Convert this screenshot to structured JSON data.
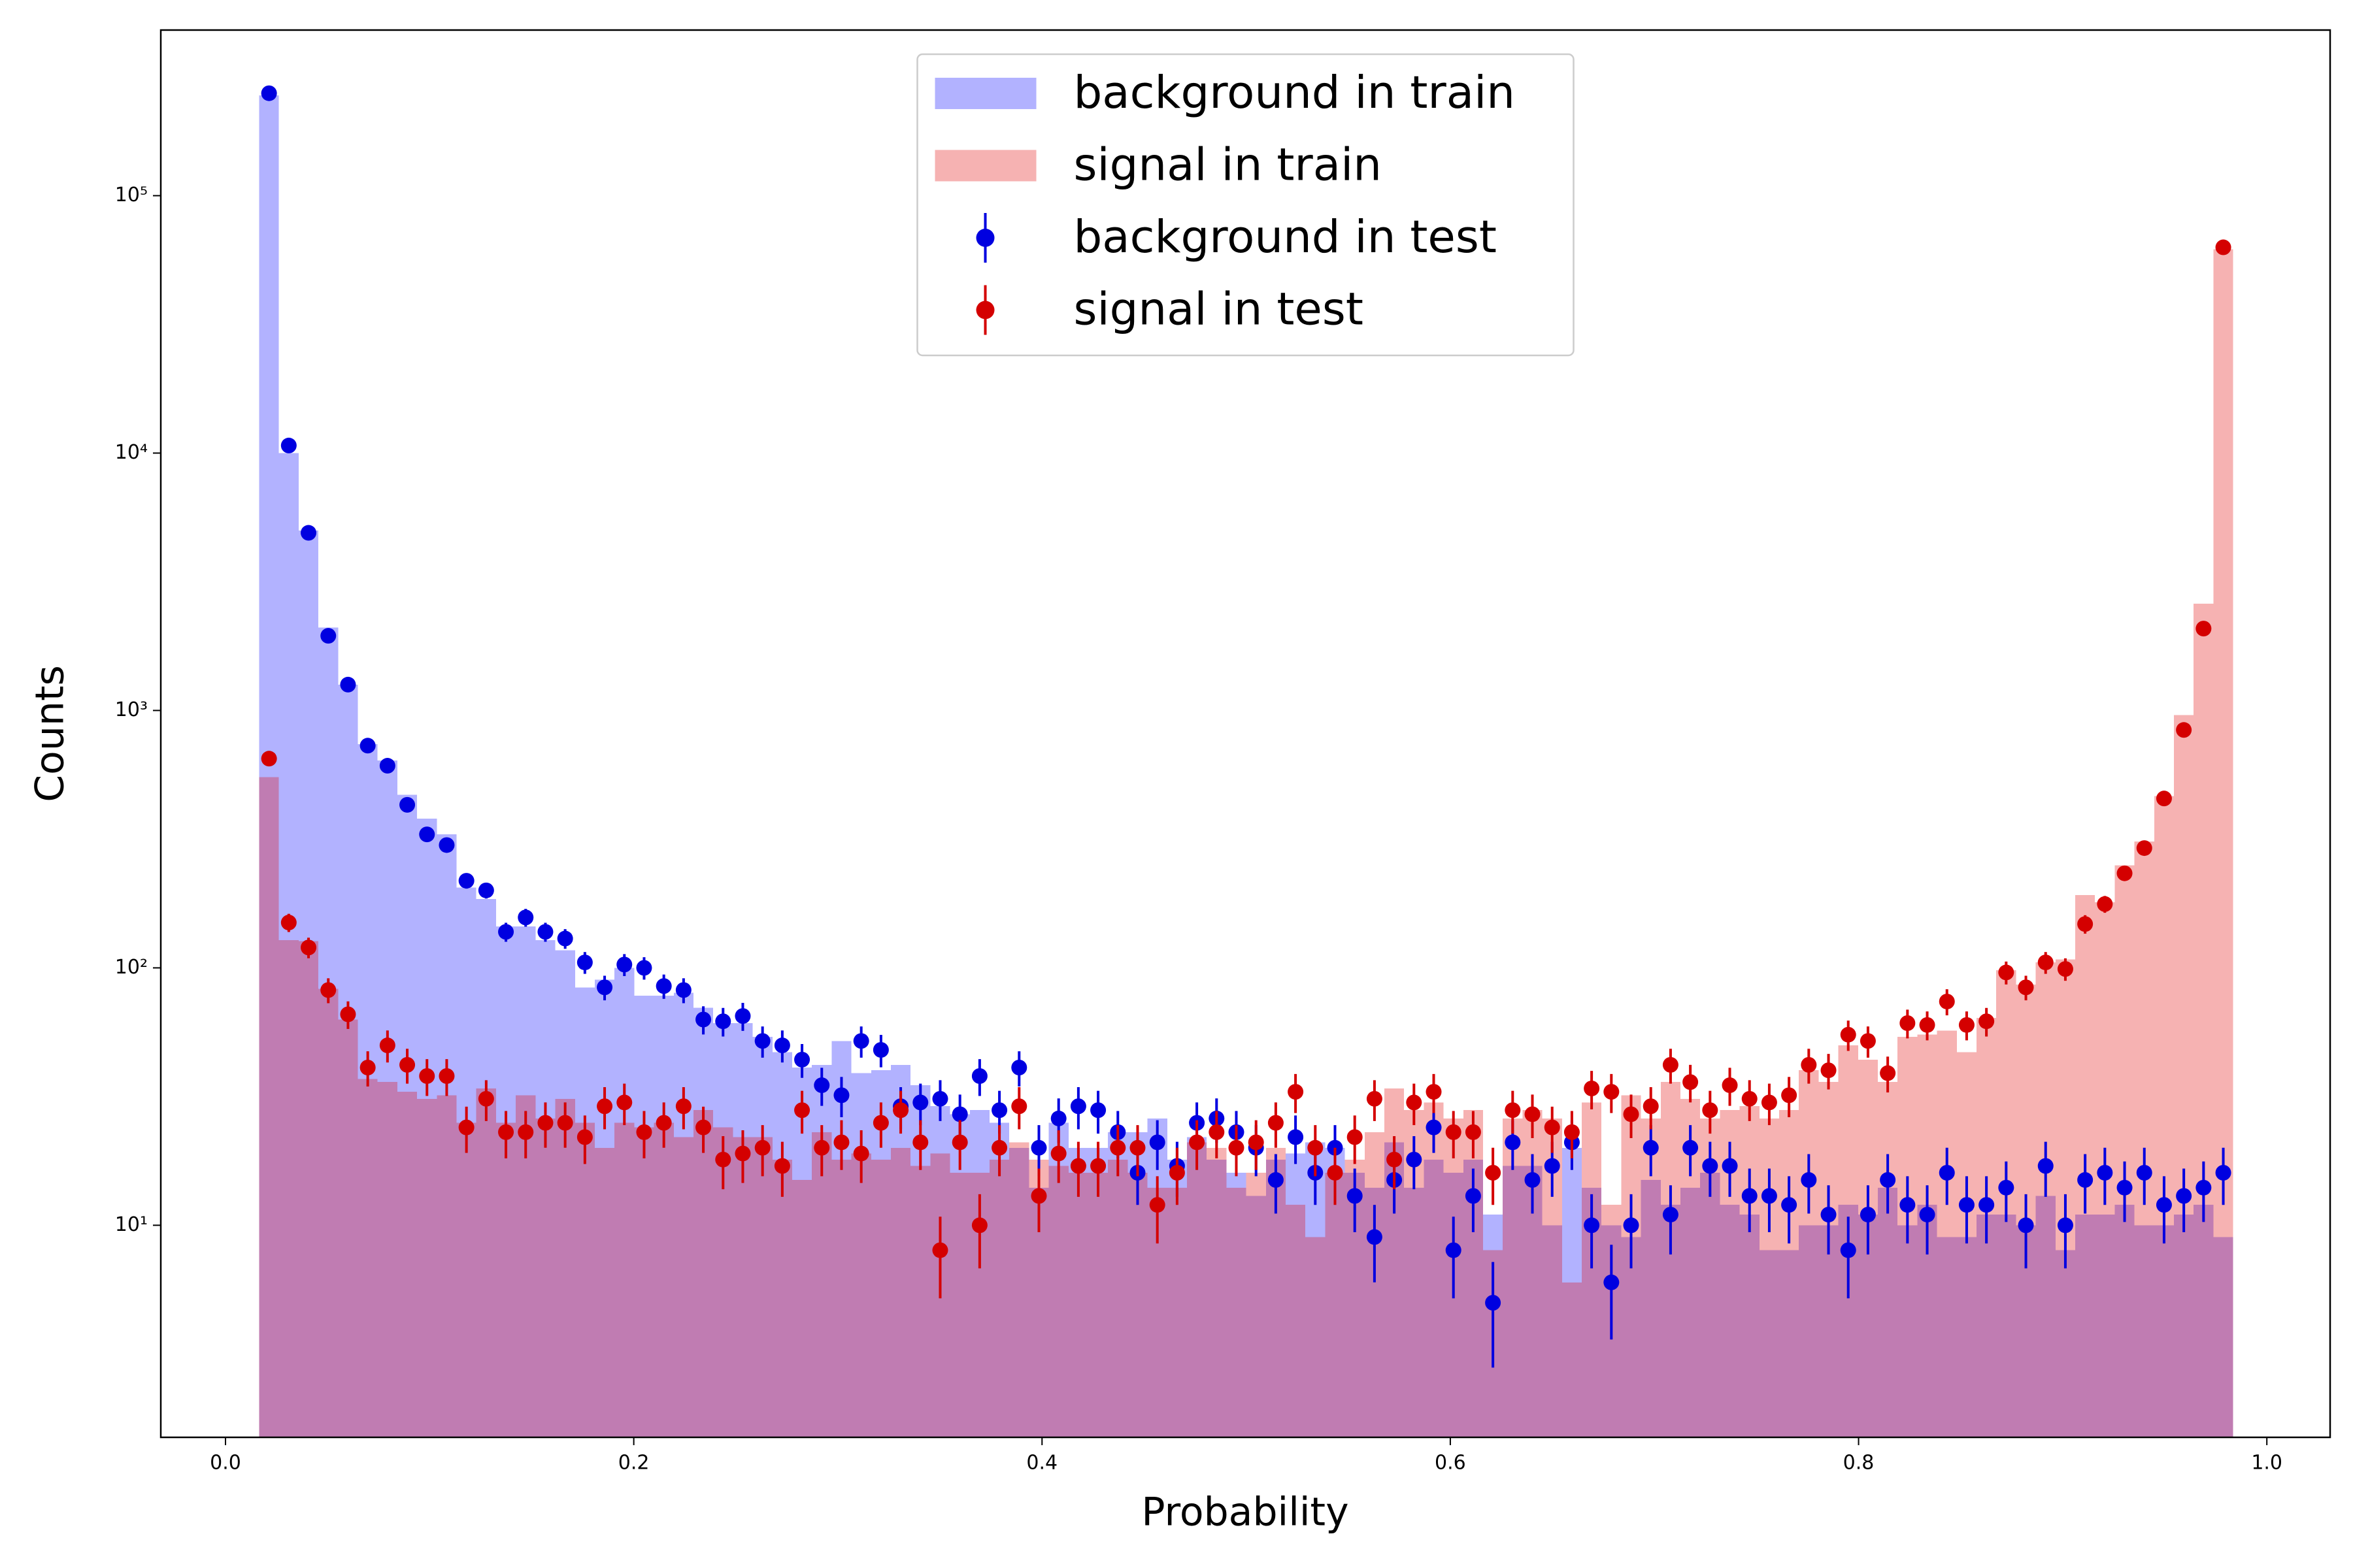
{
  "chart_data": {
    "type": "histogram",
    "x_label": "Probability",
    "y_label": "Counts",
    "xlim": [
      -0.0317,
      1.031
    ],
    "ylim": [
      1.5,
      440000
    ],
    "y_scale": "log",
    "grid": false,
    "legend": "upper center",
    "xticks": [
      {
        "value": 0,
        "label": "0.0"
      },
      0.2,
      0.4,
      0.6,
      0.8,
      {
        "value": 1,
        "label": "1.0"
      }
    ],
    "yticks": [
      {
        "value": 10,
        "label": "10¹"
      },
      {
        "value": 100,
        "label": "10²"
      },
      {
        "value": 1000,
        "label": "10³"
      },
      {
        "value": 10000,
        "label": "10⁴"
      },
      {
        "value": 100000,
        "label": "10⁵"
      }
    ],
    "bins": [
      0.0165,
      0.02617,
      0.03584,
      0.04551,
      0.05518,
      0.06485,
      0.07452,
      0.08419,
      0.09386,
      0.10353,
      0.1132,
      0.12287,
      0.13254,
      0.14221,
      0.15188,
      0.16155,
      0.17122,
      0.18089,
      0.19056,
      0.20023,
      0.2099,
      0.21957,
      0.22924,
      0.23891,
      0.24858,
      0.25825,
      0.26792,
      0.27759,
      0.28726,
      0.29693,
      0.3066,
      0.31627,
      0.32594,
      0.33561,
      0.34528,
      0.35495,
      0.36462,
      0.37429,
      0.38396,
      0.39363,
      0.4033,
      0.41297,
      0.42264,
      0.43231,
      0.44198,
      0.45165,
      0.46132,
      0.47099,
      0.48066,
      0.49033,
      0.5,
      0.50967,
      0.51934,
      0.52901,
      0.53868,
      0.54835,
      0.55802,
      0.56769,
      0.57736,
      0.58703,
      0.5967,
      0.60637,
      0.61604,
      0.62571,
      0.63538,
      0.64505,
      0.65472,
      0.66439,
      0.67406,
      0.68373,
      0.6934,
      0.70307,
      0.71274,
      0.72241,
      0.73208,
      0.74175,
      0.75142,
      0.76109,
      0.77076,
      0.78043,
      0.7901,
      0.79977,
      0.80944,
      0.81911,
      0.82878,
      0.83845,
      0.84812,
      0.85779,
      0.86746,
      0.87713,
      0.8868,
      0.89647,
      0.90614,
      0.91581,
      0.92548,
      0.93515,
      0.94482,
      0.95449,
      0.96416,
      0.97383,
      0.9835
    ],
    "series": [
      {
        "name": "background in train",
        "color": "#0000ff",
        "opacity": 0.3,
        "values": [
          245000,
          10000,
          5000,
          2100,
          1260,
          740,
          640,
          470,
          380,
          330,
          205,
          185,
          145,
          145,
          128,
          117,
          84,
          90,
          100,
          78,
          78,
          80,
          70,
          61,
          61,
          54,
          47,
          41,
          42,
          52,
          39,
          40,
          42,
          35,
          29,
          27,
          28,
          25,
          20,
          14,
          25,
          20,
          20,
          23,
          23,
          26,
          18,
          22,
          18,
          16,
          13,
          18,
          19,
          21,
          20,
          16,
          14,
          21,
          14,
          18,
          16,
          18,
          11,
          17,
          17,
          10,
          20,
          14,
          10,
          9,
          15,
          12,
          14,
          16,
          12,
          11,
          8,
          8,
          10,
          10,
          12,
          11,
          14,
          10,
          12,
          9,
          9,
          11,
          11,
          10,
          13,
          8,
          11,
          11,
          12,
          10,
          10,
          11,
          12,
          9
        ]
      },
      {
        "name": "signal in train",
        "color": "#e00000",
        "opacity": 0.3,
        "values": [
          550,
          128,
          127,
          83,
          63,
          37,
          36,
          33,
          31,
          32,
          25,
          34,
          25,
          32,
          26,
          31,
          25,
          20,
          25,
          24,
          25,
          22,
          28,
          24,
          22,
          22,
          18,
          15,
          23,
          18,
          19,
          18,
          20,
          17,
          19,
          16,
          16,
          18,
          21,
          18,
          17,
          16,
          16,
          18,
          16,
          14,
          14,
          21,
          20,
          14,
          16,
          20,
          12,
          9,
          16,
          18,
          23,
          34,
          28,
          30,
          26,
          28,
          8,
          26,
          28,
          26,
          6,
          30,
          12,
          32,
          26,
          36,
          31,
          26,
          28,
          29,
          26,
          28,
          40,
          36,
          50,
          44,
          36,
          54,
          55,
          57,
          47,
          64,
          98,
          86,
          105,
          108,
          192,
          180,
          250,
          310,
          465,
          960,
          2600,
          62000
        ]
      },
      {
        "name": "background in test",
        "color": "#0000e0",
        "values": [
          250000,
          10700,
          4900,
          1950,
          1260,
          730,
          610,
          430,
          330,
          300,
          218,
          200,
          138,
          157,
          138,
          130,
          105,
          84,
          103,
          100,
          85,
          82,
          63,
          62,
          65,
          52,
          50,
          44,
          35,
          32,
          52,
          48,
          29,
          30,
          31,
          27,
          38,
          28,
          41,
          20,
          26,
          29,
          28,
          23,
          16,
          21,
          17,
          25,
          26,
          23,
          20,
          15,
          22,
          16,
          20,
          13,
          9,
          15,
          18,
          24,
          8,
          13,
          5,
          21,
          15,
          17,
          21,
          10,
          6,
          10,
          20,
          11,
          20,
          17,
          17,
          13,
          13,
          12,
          15,
          11,
          8,
          11,
          15,
          12,
          11,
          16,
          12,
          12,
          14,
          10,
          17,
          10,
          15,
          16,
          14,
          16,
          12,
          13,
          14,
          16
        ],
        "errors": [
          500,
          103.4,
          70,
          44.2,
          35.5,
          27,
          24.7,
          20.7,
          18.2,
          17.3,
          14.8,
          14.1,
          11.7,
          12.5,
          11.7,
          11.4,
          10.2,
          9.2,
          10.1,
          10,
          9.2,
          9.1,
          7.9,
          7.9,
          8.1,
          7.2,
          7.1,
          6.6,
          5.9,
          5.7,
          7.2,
          6.9,
          5.4,
          5.5,
          5.6,
          5.2,
          6.2,
          5.3,
          6.4,
          4.5,
          5.1,
          5.4,
          5.3,
          4.8,
          4,
          4.6,
          4.1,
          5,
          5.1,
          4.8,
          4.5,
          3.9,
          4.7,
          4,
          4.5,
          3.6,
          3,
          3.9,
          4.2,
          4.9,
          2.8,
          3.6,
          2.2,
          4.6,
          3.9,
          4.1,
          4.6,
          3.2,
          2.4,
          3.2,
          4.5,
          3.3,
          4.5,
          4.1,
          4.1,
          3.6,
          3.6,
          3.5,
          3.9,
          3.3,
          2.8,
          3.3,
          3.9,
          3.5,
          3.3,
          4,
          3.5,
          3.5,
          3.7,
          3.2,
          4.1,
          3.2,
          3.9,
          4,
          3.7,
          4,
          3.5,
          3.6,
          3.7,
          4
        ]
      },
      {
        "name": "signal in test",
        "color": "#d40000",
        "values": [
          650,
          150,
          120,
          82,
          66,
          41,
          50,
          42,
          38,
          38,
          24,
          31,
          23,
          23,
          25,
          25,
          22,
          29,
          30,
          23,
          25,
          29,
          24,
          18,
          19,
          20,
          17,
          28,
          20,
          21,
          19,
          25,
          28,
          21,
          8,
          21,
          10,
          20,
          29,
          13,
          19,
          17,
          17,
          20,
          20,
          12,
          16,
          21,
          23,
          20,
          21,
          25,
          33,
          20,
          16,
          22,
          31,
          18,
          30,
          33,
          23,
          23,
          16,
          28,
          27,
          24,
          23,
          34,
          33,
          27,
          29,
          42,
          36,
          28,
          35,
          31,
          30,
          32,
          42,
          40,
          55,
          52,
          39,
          61,
          60,
          74,
          60,
          62,
          96,
          84,
          105,
          99,
          148,
          177,
          233,
          292,
          455,
          840,
          2080,
          63000
        ],
        "errors": [
          25.5,
          12.2,
          11,
          9.1,
          8.1,
          6.4,
          7.1,
          6.5,
          6.2,
          6.2,
          4.9,
          5.6,
          4.8,
          4.8,
          5,
          5,
          4.7,
          5.4,
          5.5,
          4.8,
          5,
          5.4,
          4.9,
          4.2,
          4.4,
          4.5,
          4.1,
          5.3,
          4.5,
          4.6,
          4.4,
          5,
          5.3,
          4.6,
          2.8,
          4.6,
          3.2,
          4.5,
          5.4,
          3.6,
          4.4,
          4.1,
          4.1,
          4.5,
          4.5,
          3.5,
          4,
          4.6,
          4.8,
          4.5,
          4.6,
          5,
          5.7,
          4.5,
          4,
          4.7,
          5.6,
          4.2,
          5.5,
          5.7,
          4.8,
          4.8,
          4,
          5.3,
          5.2,
          4.9,
          4.8,
          5.8,
          5.7,
          5.2,
          5.4,
          6.5,
          6,
          5.3,
          5.9,
          5.6,
          5.5,
          5.7,
          6.5,
          6.3,
          7.4,
          7.2,
          6.2,
          7.8,
          7.7,
          8.6,
          7.7,
          7.9,
          9.8,
          9.2,
          10.2,
          9.9,
          12.2,
          13.3,
          15.3,
          17.1,
          21.3,
          29,
          45.6,
          251
        ]
      }
    ]
  }
}
